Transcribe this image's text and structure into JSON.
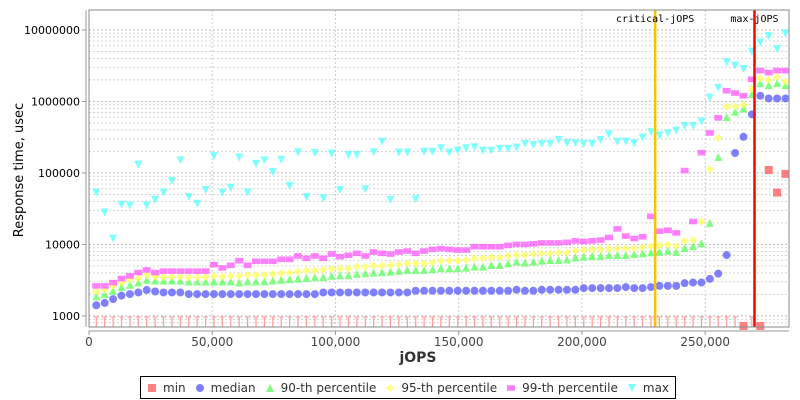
{
  "chart_data": {
    "type": "scatter",
    "xlabel": "jOPS",
    "ylabel": "Response time, usec",
    "xlim": [
      0,
      284000
    ],
    "ylim": [
      700,
      19000000
    ],
    "yscale": "log",
    "grid": true,
    "legend_position": "bottom",
    "x_ticks": [
      "0",
      "50,000",
      "100,000",
      "150,000",
      "200,000",
      "250,000"
    ],
    "x_tick_values": [
      0,
      50000,
      100000,
      150000,
      200000,
      250000
    ],
    "y_ticks": [
      "1000",
      "10000",
      "100000",
      "1000000",
      "10000000"
    ],
    "y_tick_values": [
      1000,
      10000,
      100000,
      1000000,
      10000000
    ],
    "markers": [
      {
        "label": "critical-jOPS",
        "x": 229700,
        "color": "#ffc000"
      },
      {
        "label": "max-jOPS",
        "x": 270000,
        "color": "#ff0000"
      }
    ],
    "x": [
      2960,
      6370,
      9780,
      13190,
      16600,
      20010,
      23420,
      26830,
      30240,
      33650,
      37060,
      40470,
      43880,
      47290,
      50700,
      54110,
      57520,
      60930,
      64340,
      67750,
      71160,
      74570,
      77980,
      81390,
      84800,
      88210,
      91620,
      95030,
      98440,
      101850,
      105260,
      108670,
      112080,
      115490,
      118900,
      122310,
      125720,
      129130,
      132540,
      135950,
      139360,
      142770,
      146180,
      149590,
      153000,
      156410,
      159820,
      163230,
      166640,
      170050,
      173460,
      176870,
      180280,
      183690,
      187100,
      190510,
      193920,
      197330,
      200740,
      204150,
      207560,
      210970,
      214380,
      217790,
      221200,
      224610,
      228020,
      231430,
      234840,
      238250,
      241660,
      245070,
      248480,
      251890,
      255300,
      258710,
      262120,
      265530,
      268940,
      272350,
      275760,
      279170,
      282580
    ],
    "series": [
      {
        "name": "min",
        "color": "#ff5555",
        "marker": "square",
        "values": [
          500,
          500,
          500,
          500,
          500,
          500,
          500,
          500,
          500,
          500,
          500,
          500,
          500,
          500,
          500,
          500,
          500,
          500,
          500,
          500,
          500,
          500,
          500,
          500,
          500,
          500,
          500,
          500,
          500,
          500,
          500,
          500,
          500,
          500,
          500,
          500,
          500,
          500,
          500,
          500,
          500,
          500,
          500,
          500,
          500,
          500,
          500,
          500,
          500,
          500,
          500,
          500,
          500,
          500,
          500,
          500,
          500,
          500,
          500,
          500,
          500,
          500,
          500,
          500,
          500,
          500,
          500,
          500,
          500,
          500,
          500,
          500,
          500,
          500,
          500,
          500,
          500,
          720,
          500,
          720,
          110000,
          53000,
          97000
        ]
      },
      {
        "name": "median",
        "color": "#5555ff",
        "marker": "circle",
        "values": [
          1410,
          1520,
          1720,
          1920,
          2020,
          2130,
          2300,
          2200,
          2130,
          2130,
          2130,
          2020,
          2020,
          2020,
          2020,
          2020,
          2020,
          2020,
          2020,
          2020,
          2020,
          2020,
          2020,
          2020,
          2020,
          2020,
          2020,
          2130,
          2130,
          2130,
          2130,
          2130,
          2130,
          2130,
          2130,
          2130,
          2130,
          2130,
          2250,
          2250,
          2250,
          2250,
          2250,
          2250,
          2250,
          2250,
          2250,
          2250,
          2250,
          2250,
          2320,
          2250,
          2250,
          2320,
          2320,
          2320,
          2320,
          2320,
          2450,
          2450,
          2450,
          2450,
          2450,
          2530,
          2450,
          2450,
          2530,
          2630,
          2630,
          2630,
          2870,
          2930,
          2930,
          3300,
          3900,
          7100,
          190000,
          320000,
          660000,
          1200000,
          1100000,
          1100000,
          1100000
        ]
      },
      {
        "name": "90-th percentile",
        "color": "#55ff55",
        "marker": "triangle-up",
        "values": [
          1880,
          2020,
          2250,
          2530,
          2730,
          2930,
          3200,
          3130,
          3130,
          3130,
          3130,
          3030,
          3030,
          3030,
          3030,
          3030,
          3030,
          2930,
          3030,
          3030,
          3030,
          3130,
          3200,
          3270,
          3340,
          3410,
          3490,
          3490,
          3640,
          3710,
          3710,
          3880,
          3960,
          4040,
          4090,
          4170,
          4260,
          4400,
          4400,
          4400,
          4490,
          4640,
          4640,
          4640,
          4740,
          4900,
          4900,
          5160,
          5160,
          5440,
          5740,
          5560,
          5740,
          5930,
          6060,
          6060,
          6190,
          6600,
          6740,
          6890,
          6890,
          7110,
          7110,
          7110,
          7340,
          7500,
          7740,
          7910,
          8170,
          7910,
          8900,
          9500,
          10400,
          20000,
          168000,
          605000,
          720000,
          800000,
          1270000,
          1800000,
          1700000,
          1800000,
          1700000
        ]
      },
      {
        "name": "95-th percentile",
        "color": "#ffff55",
        "marker": "diamond",
        "values": [
          2200,
          2320,
          2630,
          2920,
          3200,
          3370,
          3750,
          3550,
          3480,
          3550,
          3550,
          3480,
          3480,
          3480,
          3630,
          3550,
          3630,
          3630,
          3750,
          3750,
          3750,
          3840,
          3950,
          4040,
          4170,
          4310,
          4310,
          4400,
          4590,
          4590,
          4590,
          4900,
          4900,
          5060,
          5060,
          5160,
          5270,
          5440,
          5440,
          5440,
          5620,
          5930,
          5930,
          5930,
          6060,
          6390,
          6390,
          6600,
          6600,
          6890,
          7110,
          7110,
          7340,
          7500,
          7500,
          7660,
          7660,
          8170,
          8340,
          8520,
          8610,
          8710,
          8800,
          8800,
          8800,
          9080,
          9480,
          9690,
          10000,
          9480,
          11200,
          11500,
          20900,
          113000,
          309000,
          848000,
          848000,
          890000,
          1480000,
          2100000,
          2000000,
          2200000,
          1900000
        ]
      },
      {
        "name": "99-th percentile",
        "color": "#ff55ff",
        "marker": "rect",
        "values": [
          2630,
          2630,
          2920,
          3330,
          3630,
          4040,
          4400,
          4040,
          4230,
          4230,
          4230,
          4230,
          4230,
          4230,
          5210,
          4690,
          5110,
          5930,
          5110,
          5810,
          5810,
          5810,
          6200,
          6190,
          6890,
          6390,
          6890,
          6390,
          7340,
          6740,
          7040,
          7500,
          6890,
          7830,
          7500,
          7340,
          7830,
          8080,
          7500,
          8080,
          8520,
          8710,
          8520,
          8340,
          8340,
          9280,
          9280,
          9280,
          9280,
          9690,
          10000,
          10000,
          10200,
          10500,
          10500,
          10500,
          10700,
          11200,
          11000,
          11200,
          11500,
          12500,
          16500,
          13100,
          12100,
          12800,
          24700,
          15300,
          15800,
          14500,
          108000,
          20900,
          192000,
          363000,
          589000,
          1410000,
          1310000,
          1200000,
          2040000,
          2700000,
          2530000,
          2700000,
          2700000
        ]
      },
      {
        "name": "max",
        "color": "#55ffff",
        "marker": "triangle-down",
        "values": [
          53000,
          28000,
          12000,
          36000,
          35000,
          130000,
          35000,
          42000,
          53000,
          77000,
          150000,
          46000,
          37000,
          58000,
          172000,
          53000,
          62000,
          165000,
          53000,
          134000,
          150000,
          103000,
          153000,
          66000,
          193000,
          46000,
          190000,
          44000,
          186000,
          58000,
          178000,
          178000,
          59000,
          195000,
          274000,
          42000,
          192000,
          192000,
          42800,
          198000,
          198000,
          221000,
          192000,
          205000,
          221000,
          229000,
          205000,
          205000,
          217000,
          217000,
          226000,
          255000,
          246000,
          255000,
          255000,
          290000,
          260000,
          260000,
          255000,
          255000,
          290000,
          348000,
          274000,
          274000,
          260000,
          312000,
          371000,
          332000,
          359000,
          391000,
          454000,
          454000,
          522000,
          1130000,
          1540000,
          3530000,
          3170000,
          2850000,
          4970000,
          6700000,
          8200000,
          5400000,
          8900000
        ]
      }
    ]
  }
}
